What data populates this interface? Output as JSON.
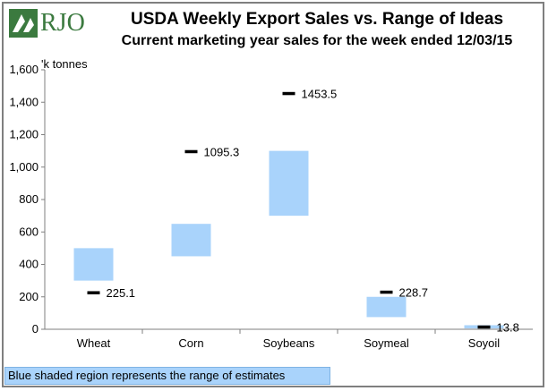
{
  "logo": {
    "text": "RJO"
  },
  "title": "USDA Weekly Export Sales vs. Range of Ideas",
  "subtitle": "Current marketing year sales for the week ended 12/03/15",
  "note": "Blue shaded region represents the range of estimates",
  "colors": {
    "range": "#a9d3fb",
    "marker": "#000000",
    "logo": "#3b7a3f"
  },
  "chart_data": {
    "type": "bar",
    "categories": [
      "Wheat",
      "Corn",
      "Soybeans",
      "Soymeal",
      "Soyoil"
    ],
    "series": [
      {
        "values": [
          [
            300,
            500
          ],
          [
            450,
            650
          ],
          [
            700,
            1100
          ],
          [
            75,
            200
          ],
          [
            5,
            25
          ]
        ]
      },
      {
        "values": [
          225.1,
          1095.3,
          1453.5,
          228.7,
          13.8
        ]
      }
    ],
    "data_labels": [
      "225.1",
      "1095.3",
      "1453.5",
      "228.7",
      "13.8"
    ],
    "ylabel": "'k tonnes",
    "ylim": [
      0,
      1600
    ],
    "yticks": [
      "0",
      "200",
      "400",
      "600",
      "800",
      "1,000",
      "1,200",
      "1,400",
      "1,600"
    ],
    "grid": false,
    "legend": "none"
  }
}
